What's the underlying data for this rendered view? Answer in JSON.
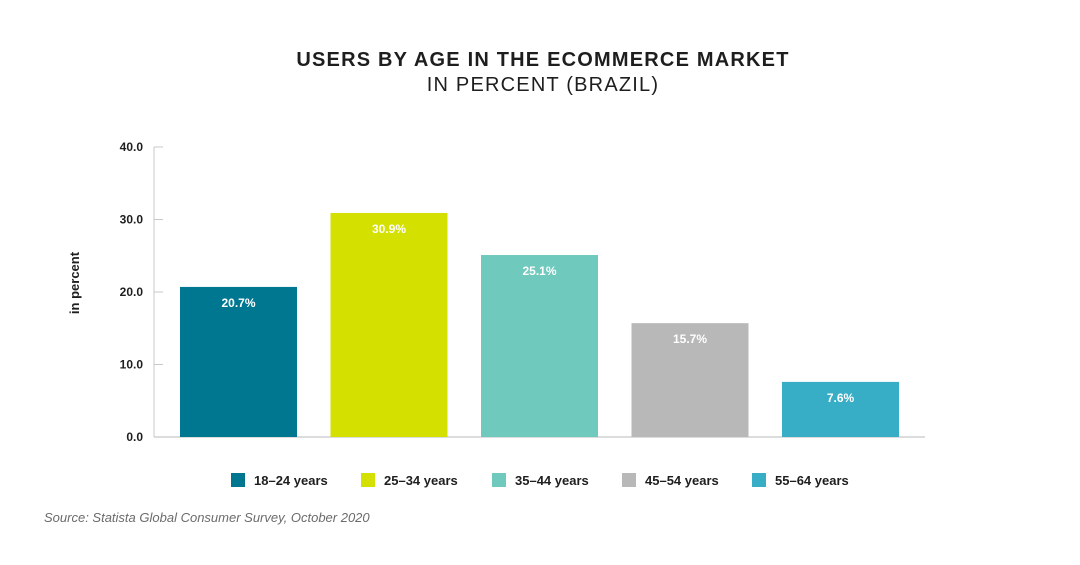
{
  "chart_data": {
    "type": "bar",
    "title": "USERS BY AGE IN THE ECOMMERCE MARKET",
    "subtitle": "IN PERCENT (BRAZIL)",
    "ylabel": "in percent",
    "xlabel": "",
    "ylim": [
      0,
      40
    ],
    "yticks": [
      "0.0",
      "10.0",
      "20.0",
      "30.0",
      "40.0"
    ],
    "categories": [
      "18-24 years",
      "25-34 years",
      "35-44 years",
      "45-54 years",
      "55-64 years"
    ],
    "values": [
      20.7,
      30.9,
      25.1,
      15.7,
      7.6
    ],
    "value_labels": [
      "20.7%",
      "30.9%",
      "25.1%",
      "15.7%",
      "7.6%"
    ],
    "colors": [
      "#007791",
      "#d3e000",
      "#6fc9bc",
      "#b8b8b8",
      "#38adc6"
    ],
    "legend": [
      "18–24 years",
      "25–34 years",
      "35–44 years",
      "45–54 years",
      "55–64 years"
    ],
    "legend_position": "bottom",
    "grid": false
  },
  "source": "Source: Statista Global Consumer Survey, October 2020"
}
